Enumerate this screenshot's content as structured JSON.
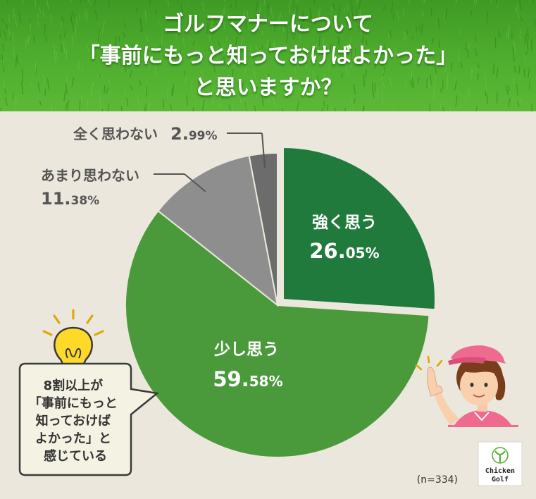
{
  "header": {
    "title_lines": [
      "ゴルフマナーについて",
      "「事前にもっと知っておけばよかった」",
      "と思いますか？"
    ]
  },
  "chart_data": {
    "type": "pie",
    "start": "12 o'clock, clockwise",
    "slices": [
      {
        "label": "強く思う",
        "value": 26.05,
        "value_major": "26.",
        "value_minor": "05%",
        "color": "#1f7a3b"
      },
      {
        "label": "少し思う",
        "value": 59.58,
        "value_major": "59.",
        "value_minor": "58%",
        "color": "#4a9a3c"
      },
      {
        "label": "あまり思わない",
        "value": 11.38,
        "value_major": "11.",
        "value_minor": "38%",
        "color": "#8e8e8e"
      },
      {
        "label": "全く思わない",
        "value": 2.99,
        "value_major": "2.",
        "value_minor": "99%",
        "color": "#6c6c6c"
      }
    ],
    "sample_size": "(n=334)"
  },
  "callout": {
    "lines": [
      "8割以上が",
      "「事前にもっと",
      "知っておけば",
      "よかった」と",
      "感じている"
    ]
  },
  "logo": {
    "lines": [
      "Chicken",
      "Golf"
    ]
  },
  "colors": {
    "background": "#ebe7dc",
    "header_green": "#4fae2e",
    "strong": "#1f7a3b",
    "some": "#4a9a3c",
    "not_much": "#8e8e8e",
    "not_at_all": "#6c6c6c",
    "callout_bg": "#f4f2e3"
  },
  "icons": [
    "lightbulb-icon",
    "golfer-woman-illustration",
    "chicken-golf-logo"
  ]
}
